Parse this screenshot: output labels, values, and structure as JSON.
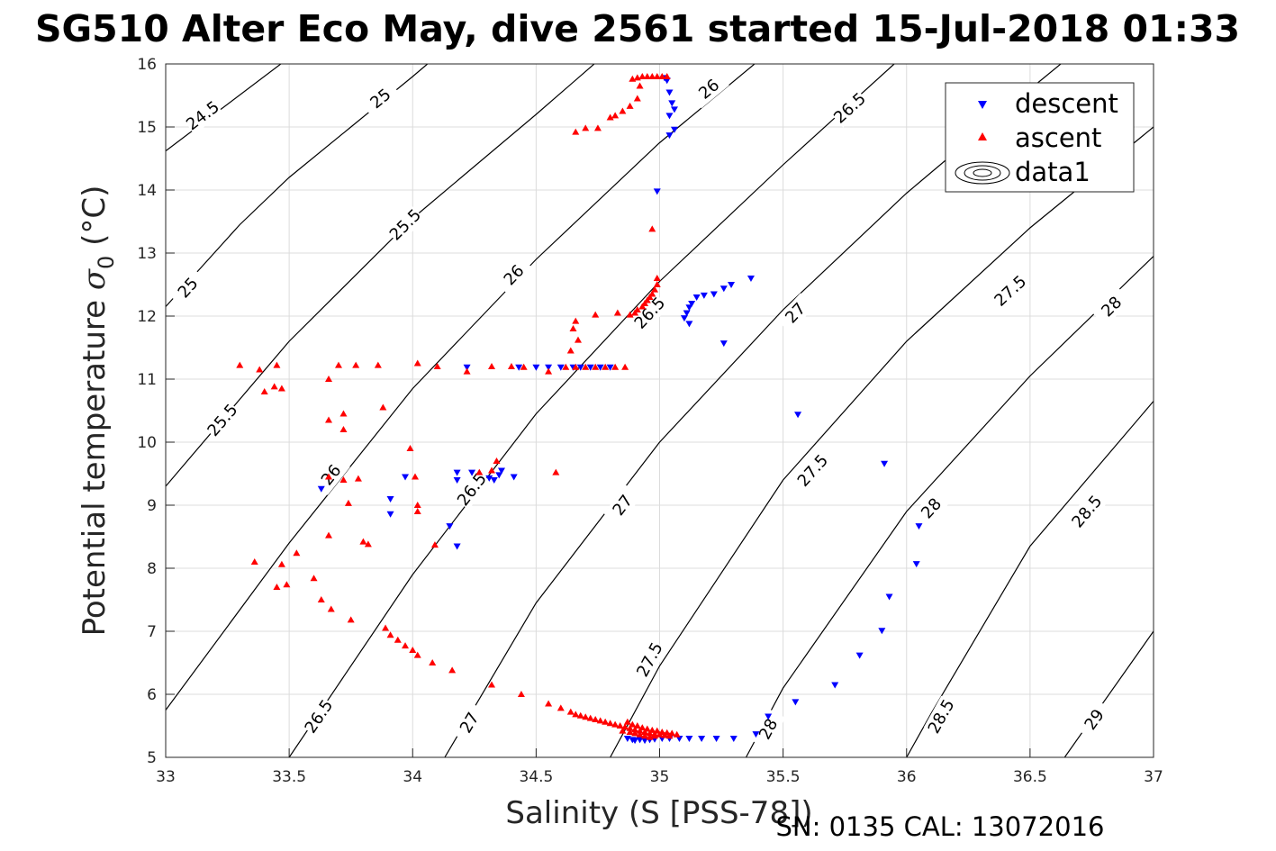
{
  "title": "SG510 Alter Eco May, dive 2561 started 15-Jul-2018 01:33",
  "footer": "SN: 0135  CAL: 13072016",
  "chart_data": {
    "type": "scatter",
    "xlabel": "Salinity (S [PSS-78])",
    "ylabel_main": "Potential temperature ",
    "ylabel_sigma": "σ",
    "ylabel_sub": "0",
    "ylabel_unit": " (°C)",
    "xlim": [
      33,
      37
    ],
    "ylim": [
      5,
      16
    ],
    "x_ticks": [
      "33",
      "33.5",
      "34",
      "34.5",
      "35",
      "35.5",
      "36",
      "36.5",
      "37"
    ],
    "y_ticks": [
      "5",
      "6",
      "7",
      "8",
      "9",
      "10",
      "11",
      "12",
      "13",
      "14",
      "15",
      "16"
    ],
    "grid": true,
    "legend_position": "top-right",
    "legend": [
      "descent",
      "ascent",
      "data1"
    ],
    "colors": {
      "descent": "#0000ff",
      "ascent": "#ff0000",
      "contour": "#000000"
    },
    "contours": [
      {
        "level": "24.5",
        "points": [
          [
            33,
            14.62
          ],
          [
            33.5,
            16.1
          ]
        ],
        "labels": [
          [
            33.15,
            15.18
          ]
        ]
      },
      {
        "level": "25",
        "points": [
          [
            33,
            12.15
          ],
          [
            33.3,
            13.45
          ],
          [
            33.5,
            14.2
          ],
          [
            33.75,
            15.0
          ],
          [
            34.0,
            15.8
          ],
          [
            34.06,
            16.0
          ]
        ],
        "labels": [
          [
            33.09,
            12.45
          ],
          [
            33.87,
            15.45
          ]
        ]
      },
      {
        "level": "25.5",
        "points": [
          [
            33,
            9.3
          ],
          [
            33.5,
            11.6
          ],
          [
            34.0,
            13.55
          ],
          [
            34.5,
            15.2
          ],
          [
            34.75,
            16.05
          ]
        ],
        "labels": [
          [
            33.23,
            10.35
          ],
          [
            33.97,
            13.45
          ]
        ]
      },
      {
        "level": "26",
        "points": [
          [
            33,
            5.75
          ],
          [
            33.5,
            8.4
          ],
          [
            34.0,
            10.85
          ],
          [
            34.5,
            12.9
          ],
          [
            35.0,
            14.75
          ],
          [
            35.4,
            16.05
          ]
        ],
        "labels": [
          [
            33.67,
            9.48
          ],
          [
            34.41,
            12.65
          ],
          [
            35.2,
            15.6
          ]
        ]
      },
      {
        "level": "26.5",
        "points": [
          [
            33.5,
            5.0
          ],
          [
            34.0,
            7.9
          ],
          [
            34.5,
            10.45
          ],
          [
            35.0,
            12.55
          ],
          [
            35.5,
            14.4
          ],
          [
            35.95,
            16.0
          ]
        ],
        "labels": [
          [
            33.62,
            5.65
          ],
          [
            34.24,
            9.25
          ],
          [
            34.96,
            12.05
          ],
          [
            35.77,
            15.3
          ]
        ]
      },
      {
        "level": "27",
        "points": [
          [
            34.13,
            5.0
          ],
          [
            34.5,
            7.45
          ],
          [
            35.0,
            10.0
          ],
          [
            35.5,
            12.1
          ],
          [
            36.0,
            13.95
          ],
          [
            36.5,
            15.6
          ],
          [
            36.64,
            16.05
          ]
        ],
        "labels": [
          [
            34.23,
            5.55
          ],
          [
            34.85,
            9.0
          ],
          [
            35.55,
            12.05
          ]
        ]
      },
      {
        "level": "27.5",
        "points": [
          [
            34.8,
            5.0
          ],
          [
            35.0,
            6.45
          ],
          [
            35.5,
            9.4
          ],
          [
            36.0,
            11.6
          ],
          [
            36.5,
            13.4
          ],
          [
            37.0,
            15.0
          ]
        ],
        "labels": [
          [
            34.96,
            6.55
          ],
          [
            35.62,
            9.55
          ],
          [
            36.42,
            12.4
          ]
        ]
      },
      {
        "level": "28",
        "points": [
          [
            35.35,
            5.0
          ],
          [
            35.5,
            6.1
          ],
          [
            36.0,
            8.9
          ],
          [
            36.5,
            11.05
          ],
          [
            37.0,
            12.95
          ]
        ],
        "labels": [
          [
            35.44,
            5.45
          ],
          [
            36.1,
            8.95
          ],
          [
            36.83,
            12.15
          ]
        ]
      },
      {
        "level": "28.5",
        "points": [
          [
            36.0,
            5.0
          ],
          [
            36.1,
            5.7
          ],
          [
            36.5,
            8.35
          ],
          [
            37.0,
            10.65
          ]
        ],
        "labels": [
          [
            36.14,
            5.65
          ],
          [
            36.73,
            8.9
          ]
        ]
      },
      {
        "level": "29",
        "points": [
          [
            36.64,
            5.0
          ],
          [
            37.0,
            7.0
          ]
        ],
        "labels": [
          [
            36.76,
            5.6
          ]
        ]
      }
    ],
    "series": [
      {
        "name": "descent",
        "points": [
          [
            35.02,
            15.78
          ],
          [
            35.03,
            15.74
          ],
          [
            35.04,
            15.55
          ],
          [
            35.05,
            15.38
          ],
          [
            35.06,
            15.28
          ],
          [
            35.04,
            15.18
          ],
          [
            35.06,
            14.96
          ],
          [
            35.04,
            14.87
          ],
          [
            34.99,
            13.98
          ],
          [
            35.1,
            11.97
          ],
          [
            35.11,
            12.05
          ],
          [
            35.12,
            12.14
          ],
          [
            35.13,
            12.2
          ],
          [
            35.15,
            12.3
          ],
          [
            35.18,
            12.33
          ],
          [
            35.22,
            12.35
          ],
          [
            35.26,
            12.44
          ],
          [
            35.29,
            12.5
          ],
          [
            35.37,
            12.6
          ],
          [
            35.12,
            11.88
          ],
          [
            35.26,
            11.57
          ],
          [
            34.5,
            11.19
          ],
          [
            34.55,
            11.19
          ],
          [
            34.6,
            11.19
          ],
          [
            34.65,
            11.19
          ],
          [
            34.68,
            11.19
          ],
          [
            34.72,
            11.19
          ],
          [
            34.76,
            11.19
          ],
          [
            34.8,
            11.19
          ],
          [
            34.22,
            11.19
          ],
          [
            34.43,
            11.19
          ],
          [
            33.63,
            9.26
          ],
          [
            33.91,
            9.1
          ],
          [
            33.91,
            8.86
          ],
          [
            33.97,
            9.45
          ],
          [
            34.18,
            9.52
          ],
          [
            34.24,
            9.52
          ],
          [
            34.31,
            9.43
          ],
          [
            34.33,
            9.4
          ],
          [
            34.35,
            9.48
          ],
          [
            34.36,
            9.55
          ],
          [
            34.41,
            9.45
          ],
          [
            34.18,
            9.4
          ],
          [
            34.15,
            8.67
          ],
          [
            34.18,
            8.35
          ],
          [
            35.56,
            10.44
          ],
          [
            35.91,
            9.66
          ],
          [
            36.05,
            8.67
          ],
          [
            36.04,
            8.07
          ],
          [
            35.93,
            7.55
          ],
          [
            35.9,
            7.01
          ],
          [
            35.81,
            6.62
          ],
          [
            35.71,
            6.15
          ],
          [
            35.55,
            5.88
          ],
          [
            35.44,
            5.65
          ],
          [
            35.39,
            5.37
          ],
          [
            34.87,
            5.3
          ],
          [
            34.89,
            5.28
          ],
          [
            34.9,
            5.27
          ],
          [
            34.92,
            5.28
          ],
          [
            34.94,
            5.27
          ],
          [
            34.96,
            5.28
          ],
          [
            34.98,
            5.29
          ],
          [
            35.01,
            5.3
          ],
          [
            35.04,
            5.3
          ],
          [
            35.08,
            5.3
          ],
          [
            35.12,
            5.3
          ],
          [
            35.17,
            5.3
          ],
          [
            35.23,
            5.3
          ],
          [
            35.3,
            5.3
          ]
        ]
      },
      {
        "name": "ascent",
        "points": [
          [
            34.89,
            15.76
          ],
          [
            34.91,
            15.78
          ],
          [
            34.93,
            15.8
          ],
          [
            34.95,
            15.8
          ],
          [
            34.97,
            15.8
          ],
          [
            34.99,
            15.8
          ],
          [
            35.01,
            15.8
          ],
          [
            35.03,
            15.8
          ],
          [
            34.92,
            15.65
          ],
          [
            34.91,
            15.45
          ],
          [
            34.88,
            15.33
          ],
          [
            34.85,
            15.25
          ],
          [
            34.82,
            15.18
          ],
          [
            34.8,
            15.15
          ],
          [
            34.75,
            14.98
          ],
          [
            34.66,
            14.92
          ],
          [
            34.7,
            14.98
          ],
          [
            34.97,
            13.38
          ],
          [
            34.99,
            12.6
          ],
          [
            34.99,
            12.5
          ],
          [
            34.98,
            12.42
          ],
          [
            34.97,
            12.35
          ],
          [
            34.96,
            12.3
          ],
          [
            34.95,
            12.25
          ],
          [
            34.94,
            12.2
          ],
          [
            34.93,
            12.15
          ],
          [
            34.91,
            12.1
          ],
          [
            34.9,
            12.05
          ],
          [
            34.88,
            12.02
          ],
          [
            34.83,
            12.05
          ],
          [
            34.74,
            12.02
          ],
          [
            34.66,
            11.92
          ],
          [
            34.67,
            11.62
          ],
          [
            34.65,
            11.8
          ],
          [
            34.64,
            11.45
          ],
          [
            34.55,
            11.12
          ],
          [
            34.62,
            11.19
          ],
          [
            34.66,
            11.19
          ],
          [
            34.7,
            11.19
          ],
          [
            34.74,
            11.19
          ],
          [
            34.78,
            11.19
          ],
          [
            34.82,
            11.19
          ],
          [
            34.86,
            11.19
          ],
          [
            33.3,
            11.22
          ],
          [
            33.38,
            11.15
          ],
          [
            33.45,
            11.22
          ],
          [
            33.4,
            10.8
          ],
          [
            33.44,
            10.88
          ],
          [
            33.47,
            10.85
          ],
          [
            33.66,
            11.0
          ],
          [
            33.7,
            11.22
          ],
          [
            33.77,
            11.22
          ],
          [
            33.86,
            11.22
          ],
          [
            34.02,
            11.25
          ],
          [
            34.1,
            11.2
          ],
          [
            34.22,
            11.12
          ],
          [
            34.32,
            11.2
          ],
          [
            34.4,
            11.2
          ],
          [
            34.45,
            11.19
          ],
          [
            33.66,
            10.35
          ],
          [
            33.72,
            10.45
          ],
          [
            33.72,
            10.2
          ],
          [
            33.88,
            10.55
          ],
          [
            33.66,
            9.45
          ],
          [
            33.72,
            9.4
          ],
          [
            33.78,
            9.42
          ],
          [
            33.74,
            9.03
          ],
          [
            33.99,
            9.9
          ],
          [
            34.01,
            9.45
          ],
          [
            34.02,
            9.0
          ],
          [
            34.02,
            8.9
          ],
          [
            34.09,
            8.37
          ],
          [
            34.27,
            9.52
          ],
          [
            34.32,
            9.55
          ],
          [
            34.34,
            9.7
          ],
          [
            34.58,
            9.52
          ],
          [
            33.66,
            8.52
          ],
          [
            33.8,
            8.42
          ],
          [
            33.82,
            8.38
          ],
          [
            33.36,
            8.1
          ],
          [
            33.47,
            8.06
          ],
          [
            33.53,
            8.24
          ],
          [
            33.45,
            7.7
          ],
          [
            33.49,
            7.74
          ],
          [
            33.6,
            7.84
          ],
          [
            33.63,
            7.5
          ],
          [
            33.67,
            7.35
          ],
          [
            33.75,
            7.18
          ],
          [
            33.89,
            7.05
          ],
          [
            33.91,
            6.94
          ],
          [
            33.94,
            6.86
          ],
          [
            33.97,
            6.77
          ],
          [
            34.0,
            6.7
          ],
          [
            34.02,
            6.62
          ],
          [
            34.08,
            6.5
          ],
          [
            34.16,
            6.38
          ],
          [
            34.32,
            6.15
          ],
          [
            34.44,
            6.0
          ],
          [
            34.55,
            5.85
          ],
          [
            34.6,
            5.78
          ],
          [
            34.64,
            5.72
          ],
          [
            34.66,
            5.68
          ],
          [
            34.68,
            5.66
          ],
          [
            34.7,
            5.64
          ],
          [
            34.72,
            5.62
          ],
          [
            34.74,
            5.6
          ],
          [
            34.76,
            5.58
          ],
          [
            34.78,
            5.56
          ],
          [
            34.8,
            5.54
          ],
          [
            34.82,
            5.52
          ],
          [
            34.84,
            5.5
          ],
          [
            34.86,
            5.48
          ],
          [
            34.88,
            5.46
          ],
          [
            34.9,
            5.44
          ],
          [
            34.92,
            5.42
          ],
          [
            34.94,
            5.4
          ],
          [
            34.96,
            5.38
          ],
          [
            34.98,
            5.37
          ],
          [
            35.0,
            5.36
          ],
          [
            35.02,
            5.35
          ],
          [
            35.04,
            5.34
          ],
          [
            34.87,
            5.56
          ],
          [
            34.89,
            5.52
          ],
          [
            34.91,
            5.5
          ],
          [
            34.93,
            5.47
          ],
          [
            34.95,
            5.45
          ],
          [
            34.97,
            5.43
          ],
          [
            34.99,
            5.42
          ],
          [
            35.01,
            5.4
          ],
          [
            35.03,
            5.39
          ],
          [
            35.05,
            5.38
          ],
          [
            35.07,
            5.36
          ],
          [
            34.85,
            5.42
          ],
          [
            34.88,
            5.4
          ],
          [
            34.9,
            5.38
          ],
          [
            34.92,
            5.36
          ],
          [
            34.94,
            5.34
          ],
          [
            34.96,
            5.32
          ],
          [
            34.98,
            5.34
          ]
        ]
      }
    ]
  }
}
